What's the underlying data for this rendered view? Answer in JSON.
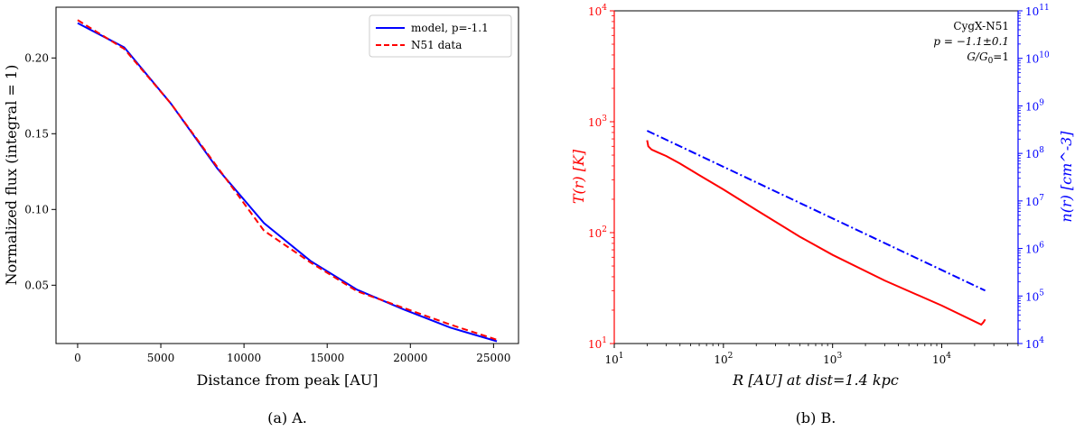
{
  "chart_data": [
    {
      "type": "line",
      "caption": "(a) A.",
      "title": "",
      "xlabel": "Distance from peak [AU]",
      "ylabel": "Normalized flux (integral = 1)",
      "xlim": [
        -1300,
        26500
      ],
      "ylim": [
        0.0115,
        0.2335
      ],
      "xticks": [
        0,
        5000,
        10000,
        15000,
        20000,
        25000
      ],
      "xtick_labels": [
        "0",
        "5000",
        "10000",
        "15000",
        "20000",
        "25000"
      ],
      "yticks": [
        0.05,
        0.1,
        0.15,
        0.2
      ],
      "ytick_labels": [
        "0.05",
        "0.10",
        "0.15",
        "0.20"
      ],
      "legend_position": "top-right",
      "grid": false,
      "series": [
        {
          "name": "model, p=-1.1",
          "color": "#0000ff",
          "dash": "solid",
          "x": [
            0,
            2800,
            5600,
            8400,
            11200,
            14000,
            16800,
            19600,
            22400,
            25200
          ],
          "y": [
            0.223,
            0.207,
            0.17,
            0.127,
            0.091,
            0.066,
            0.047,
            0.034,
            0.022,
            0.013
          ]
        },
        {
          "name": "N51 data",
          "color": "#ff0000",
          "dash": "dashed",
          "x": [
            0,
            2800,
            5600,
            8400,
            11200,
            14000,
            16800,
            19600,
            22400,
            25200
          ],
          "y": [
            0.225,
            0.206,
            0.17,
            0.128,
            0.086,
            0.065,
            0.046,
            0.035,
            0.024,
            0.014
          ]
        }
      ]
    },
    {
      "type": "line",
      "caption": "(b) B.",
      "title": "",
      "xlabel": "R [AU] at dist=1.4 kpc",
      "ylabel_left": "T(r) [K]",
      "ylabel_right": "n(r) [cm^-3]",
      "xscale": "log",
      "yscale_left": "log",
      "yscale_right": "log",
      "xlim": [
        10,
        50000
      ],
      "ylim_left": [
        10,
        10000
      ],
      "ylim_right": [
        10000,
        100000000000
      ],
      "xtick_exponents": [
        1,
        2,
        3,
        4
      ],
      "ytick_left_exponents": [
        1,
        2,
        3,
        4
      ],
      "ytick_right_exponents": [
        4,
        5,
        6,
        7,
        8,
        9,
        10,
        11
      ],
      "tick_base": "10",
      "left_axis_color": "#ff0000",
      "right_axis_color": "#0000ff",
      "grid": false,
      "annotation": {
        "position": "top-right",
        "line1": "CygX-N51",
        "line2": "p = −1.1±0.1",
        "line3_main": "G/G",
        "line3_sub": "0",
        "line3_tail": "=1"
      },
      "series": [
        {
          "name": "T(r)",
          "axis": "left",
          "color": "#ff0000",
          "dash": "solid",
          "x": [
            20,
            20.5,
            22,
            25,
            30,
            40,
            60,
            100,
            200,
            500,
            1000,
            3000,
            10000,
            23000,
            24000,
            25000
          ],
          "y": [
            680,
            600,
            560,
            530,
            490,
            420,
            330,
            245,
            160,
            92,
            63,
            37,
            22,
            14.8,
            15.5,
            16.5
          ]
        },
        {
          "name": "n(r)",
          "axis": "right",
          "color": "#0000ff",
          "dash": "dashdot",
          "x": [
            20,
            25000
          ],
          "y": [
            300000000,
            130000
          ]
        }
      ]
    }
  ]
}
